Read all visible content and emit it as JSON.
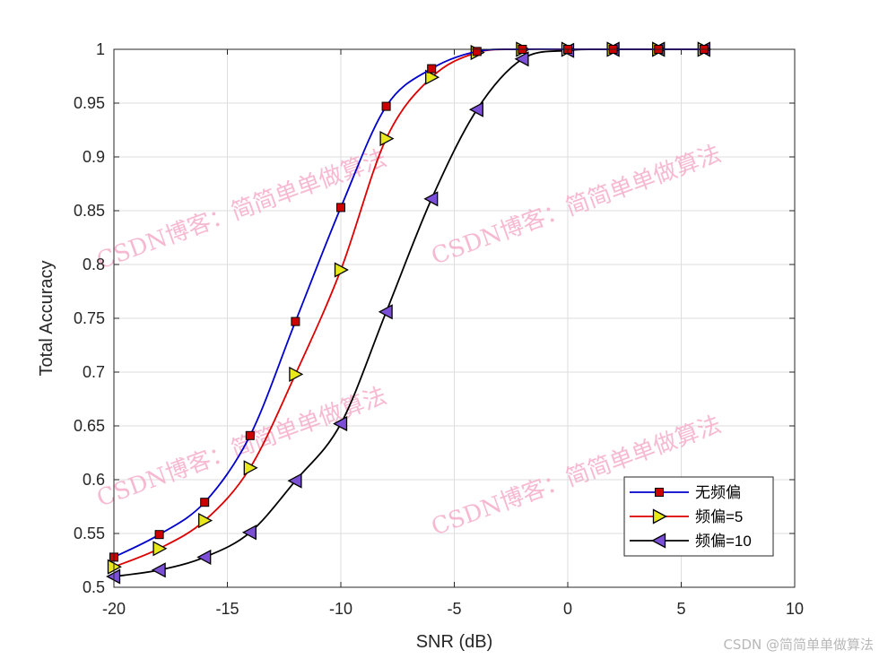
{
  "chart_data": {
    "type": "line",
    "xlabel": "SNR (dB)",
    "ylabel": "Total Accuracy",
    "xlim": [
      -20,
      10
    ],
    "ylim": [
      0.5,
      1
    ],
    "xticks": [
      -20,
      -15,
      -10,
      -5,
      0,
      5,
      10
    ],
    "xtick_labels": [
      "-20",
      "-15",
      "-10",
      "-5",
      "0",
      "5",
      "10"
    ],
    "yticks": [
      0.5,
      0.55,
      0.6,
      0.65,
      0.7,
      0.75,
      0.8,
      0.85,
      0.9,
      0.95,
      1
    ],
    "ytick_labels": [
      "0.5",
      "0.55",
      "0.6",
      "0.65",
      "0.7",
      "0.75",
      "0.8",
      "0.85",
      "0.9",
      "0.95",
      "1"
    ],
    "grid": true,
    "legend_position": "bottom-right",
    "x": [
      -20,
      -18,
      -16,
      -14,
      -12,
      -10,
      -8,
      -6,
      -4,
      -2,
      0,
      2,
      4,
      6
    ],
    "series": [
      {
        "name": "无频偏",
        "color": "#0000cc",
        "marker": "square",
        "marker_color": "#cc0000",
        "values": [
          0.528,
          0.549,
          0.579,
          0.641,
          0.747,
          0.853,
          0.947,
          0.982,
          0.998,
          1.0,
          1.0,
          1.0,
          1.0,
          1.0
        ]
      },
      {
        "name": "频偏=5",
        "color": "#dd0000",
        "marker": "triangle-right",
        "marker_color": "#e8e81a",
        "values": [
          0.519,
          0.536,
          0.562,
          0.611,
          0.698,
          0.795,
          0.917,
          0.974,
          0.997,
          1.0,
          1.0,
          1.0,
          1.0,
          1.0
        ]
      },
      {
        "name": "频偏=10",
        "color": "#000000",
        "marker": "triangle-left",
        "marker_color": "#7b4fd6",
        "values": [
          0.51,
          0.516,
          0.528,
          0.551,
          0.599,
          0.652,
          0.756,
          0.861,
          0.944,
          0.991,
          0.999,
          1.0,
          1.0,
          1.0
        ]
      }
    ]
  },
  "watermarks": [
    "CSDN博客：简简单单做算法",
    "CSDN博客：简简单单做算法",
    "CSDN博客：简简单单做算法",
    "CSDN博客：简简单单做算法"
  ],
  "footer_text": "CSDN @简简单单做算法"
}
